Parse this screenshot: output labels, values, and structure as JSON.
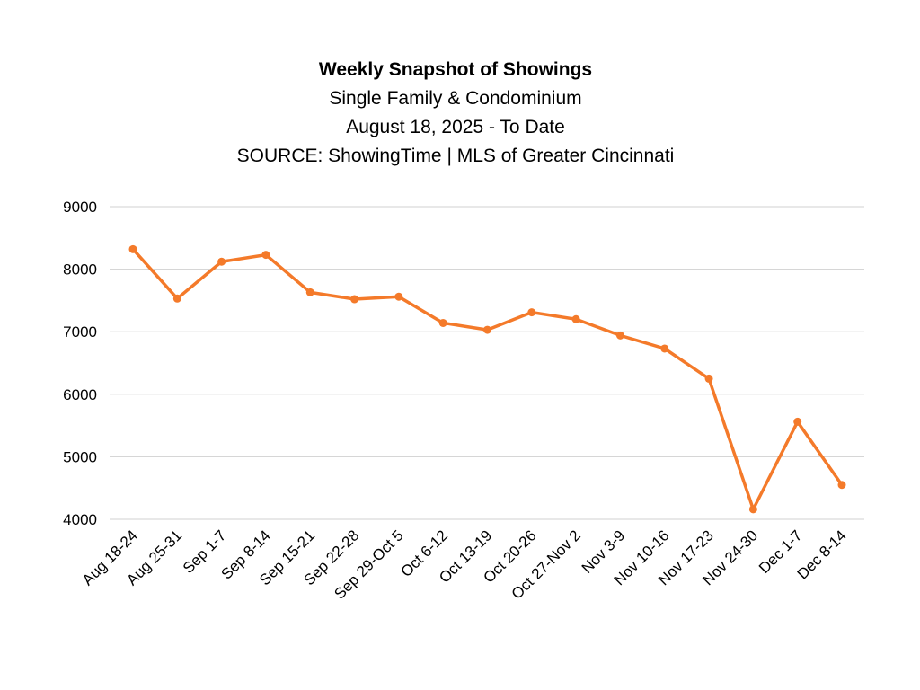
{
  "chart_data": {
    "type": "line",
    "title": "Weekly Snapshot of Showings",
    "subtitles": [
      "Single Family & Condominium",
      "August 18, 2025 - To Date",
      "SOURCE: ShowingTime | MLS of Greater Cincinnati"
    ],
    "xlabel": "",
    "ylabel": "",
    "categories": [
      "Aug 18-24",
      "Aug 25-31",
      "Sep 1-7",
      "Sep 8-14",
      "Sep 15-21",
      "Sep 22-28",
      "Sep 29-Oct 5",
      "Oct 6-12",
      "Oct 13-19",
      "Oct 20-26",
      "Oct 27-Nov 2",
      "Nov 3-9",
      "Nov 10-16",
      "Nov 17-23",
      "Nov 24-30",
      "Dec 1-7",
      "Dec 8-14"
    ],
    "series": [
      {
        "name": "Showings",
        "color": "#F47A2A",
        "values": [
          8320,
          7530,
          8120,
          8230,
          7630,
          7520,
          7560,
          7140,
          7030,
          7310,
          7200,
          6940,
          6730,
          6250,
          4160,
          5560,
          4550
        ]
      }
    ],
    "ylim": [
      4000,
      9000
    ],
    "yticks": [
      "4000",
      "5000",
      "6000",
      "7000",
      "8000",
      "9000"
    ],
    "grid": true,
    "legend": "none"
  }
}
